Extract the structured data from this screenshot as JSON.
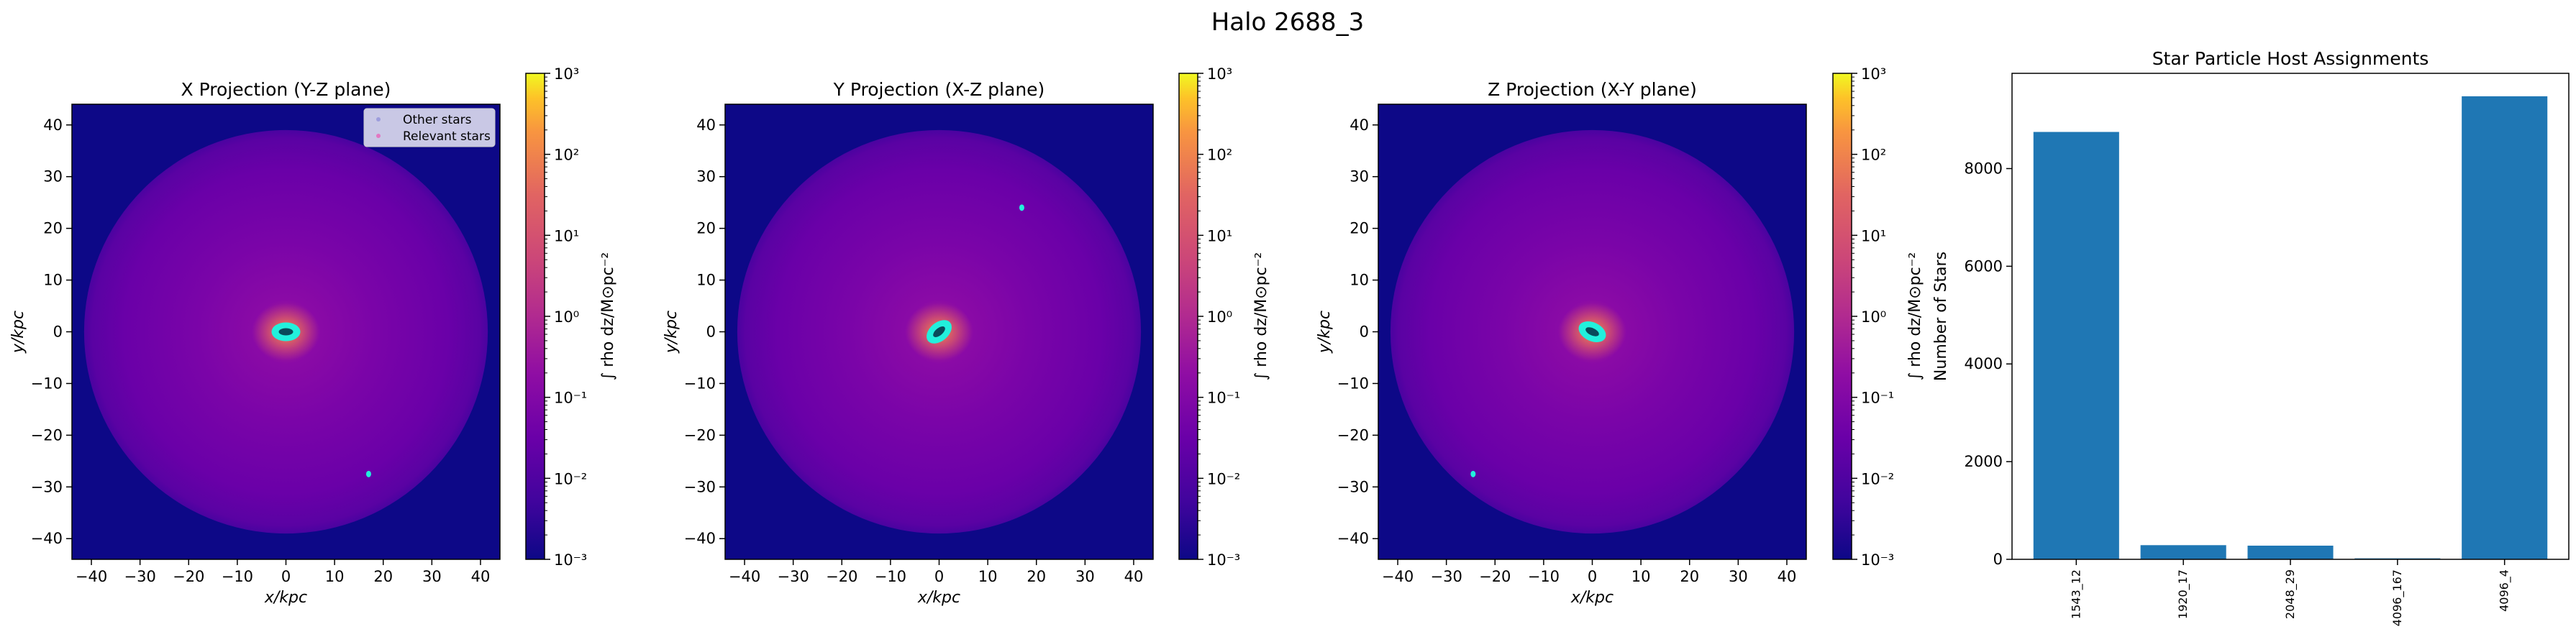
{
  "figure": {
    "title": "Halo 2688_3"
  },
  "chart_data": [
    {
      "type": "heatmap",
      "title": "X Projection (Y-Z plane)",
      "xlabel": "x/kpc",
      "ylabel": "y/kpc",
      "xlim": [
        -44,
        44
      ],
      "ylim": [
        -44,
        44
      ],
      "x_ticks": [
        "−40",
        "−30",
        "−20",
        "−10",
        "0",
        "10",
        "20",
        "30",
        "40"
      ],
      "y_ticks": [
        "−40",
        "−30",
        "−20",
        "−10",
        "0",
        "10",
        "20",
        "30",
        "40"
      ],
      "colorbar": {
        "label": "∫ rho dz/M⊙pc⁻²",
        "scale": "log",
        "range": [
          0.001,
          1000
        ],
        "ticks": [
          "10⁻³",
          "10⁻²",
          "10⁻¹",
          "10⁰",
          "10¹",
          "10²",
          "10³"
        ],
        "cmap": "plasma"
      },
      "legend": {
        "position": "upper right",
        "entries": [
          "Other stars",
          "Relevant stars"
        ]
      },
      "disk_angle": 0,
      "satellites": [
        {
          "x": 17,
          "y": -27.5
        }
      ]
    },
    {
      "type": "heatmap",
      "title": "Y Projection (X-Z plane)",
      "xlabel": "x/kpc",
      "ylabel": "y/kpc",
      "xlim": [
        -44,
        44
      ],
      "ylim": [
        -44,
        44
      ],
      "x_ticks": [
        "−40",
        "−30",
        "−20",
        "−10",
        "0",
        "10",
        "20",
        "30",
        "40"
      ],
      "y_ticks": [
        "−40",
        "−30",
        "−20",
        "−10",
        "0",
        "10",
        "20",
        "30",
        "40"
      ],
      "colorbar": {
        "label": "∫ rho dz/M⊙pc⁻²",
        "scale": "log",
        "range": [
          0.001,
          1000
        ],
        "ticks": [
          "10⁻³",
          "10⁻²",
          "10⁻¹",
          "10⁰",
          "10¹",
          "10²",
          "10³"
        ],
        "cmap": "plasma"
      },
      "disk_angle": -40,
      "satellites": [
        {
          "x": 17,
          "y": 24
        }
      ]
    },
    {
      "type": "heatmap",
      "title": "Z Projection (X-Y plane)",
      "xlabel": "x/kpc",
      "ylabel": "y/kpc",
      "xlim": [
        -44,
        44
      ],
      "ylim": [
        -44,
        44
      ],
      "x_ticks": [
        "−40",
        "−30",
        "−20",
        "−10",
        "0",
        "10",
        "20",
        "30",
        "40"
      ],
      "y_ticks": [
        "−40",
        "−30",
        "−20",
        "−10",
        "0",
        "10",
        "20",
        "30",
        "40"
      ],
      "colorbar": {
        "label": "∫ rho dz/M⊙pc⁻²",
        "scale": "log",
        "range": [
          0.001,
          1000
        ],
        "ticks": [
          "10⁻³",
          "10⁻²",
          "10⁻¹",
          "10⁰",
          "10¹",
          "10²",
          "10³"
        ],
        "cmap": "plasma"
      },
      "disk_angle": 25,
      "satellites": [
        {
          "x": -24.5,
          "y": -27.5
        }
      ]
    },
    {
      "type": "bar",
      "title": "Star Particle Host Assignments",
      "xlabel": "",
      "ylabel": "Number of Stars",
      "categories": [
        "1543_12",
        "1920_17",
        "2048_29",
        "4096_167",
        "4096_4"
      ],
      "values": [
        8750,
        290,
        280,
        20,
        9480
      ],
      "ylim": [
        0,
        9950
      ],
      "y_ticks": [
        0,
        2000,
        4000,
        6000,
        8000
      ],
      "color": "#1f77b4"
    }
  ]
}
